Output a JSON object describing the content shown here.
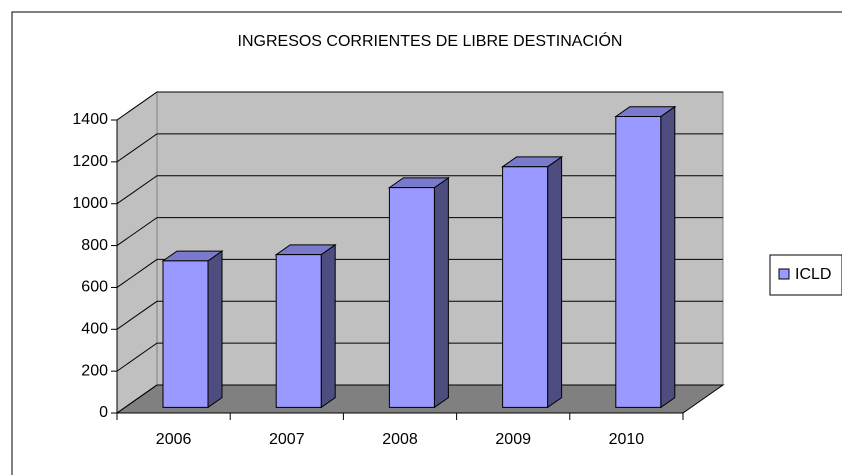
{
  "chart_data": {
    "type": "bar3d",
    "title": "INGRESOS CORRIENTES DE LIBRE DESTINACIÓN",
    "categories": [
      "2006",
      "2007",
      "2008",
      "2009",
      "2010"
    ],
    "series": [
      {
        "name": "ICLD",
        "color": "#9999ff",
        "values": [
          700,
          730,
          1050,
          1150,
          1390
        ]
      }
    ],
    "ylim": [
      0,
      1400
    ],
    "yticks": [
      0,
      200,
      400,
      600,
      800,
      1000,
      1200,
      1400
    ],
    "grid": true,
    "legend": "right"
  }
}
